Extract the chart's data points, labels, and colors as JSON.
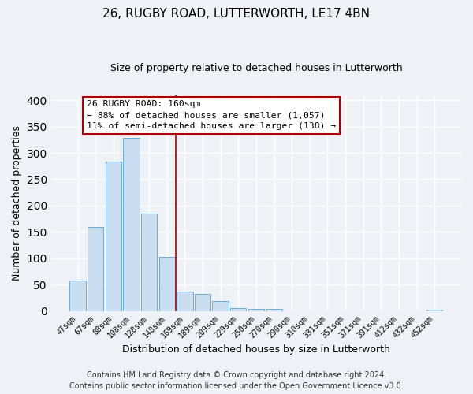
{
  "title": "26, RUGBY ROAD, LUTTERWORTH, LE17 4BN",
  "subtitle": "Size of property relative to detached houses in Lutterworth",
  "xlabel": "Distribution of detached houses by size in Lutterworth",
  "ylabel": "Number of detached properties",
  "bar_labels": [
    "47sqm",
    "67sqm",
    "88sqm",
    "108sqm",
    "128sqm",
    "148sqm",
    "169sqm",
    "189sqm",
    "209sqm",
    "229sqm",
    "250sqm",
    "270sqm",
    "290sqm",
    "310sqm",
    "331sqm",
    "351sqm",
    "371sqm",
    "391sqm",
    "412sqm",
    "432sqm",
    "452sqm"
  ],
  "bar_values": [
    57,
    160,
    284,
    328,
    185,
    103,
    37,
    32,
    19,
    6,
    4,
    4,
    0,
    0,
    0,
    0,
    0,
    0,
    0,
    0,
    3
  ],
  "bar_color": "#c8ddf0",
  "bar_edge_color": "#6aafd6",
  "ylim": [
    0,
    410
  ],
  "yticks": [
    0,
    50,
    100,
    150,
    200,
    250,
    300,
    350,
    400
  ],
  "property_line_x": 5.5,
  "property_line_color": "#aa0000",
  "annotation_title": "26 RUGBY ROAD: 160sqm",
  "annotation_line1": "← 88% of detached houses are smaller (1,057)",
  "annotation_line2": "11% of semi-detached houses are larger (138) →",
  "annotation_box_facecolor": "#ffffff",
  "annotation_box_edgecolor": "#aa0000",
  "footer_line1": "Contains HM Land Registry data © Crown copyright and database right 2024.",
  "footer_line2": "Contains public sector information licensed under the Open Government Licence v3.0.",
  "background_color": "#eef2f7",
  "plot_background_color": "#eef2f7",
  "grid_color": "#ffffff",
  "title_fontsize": 11,
  "subtitle_fontsize": 9,
  "axis_label_fontsize": 9,
  "tick_fontsize": 7,
  "footer_fontsize": 7
}
